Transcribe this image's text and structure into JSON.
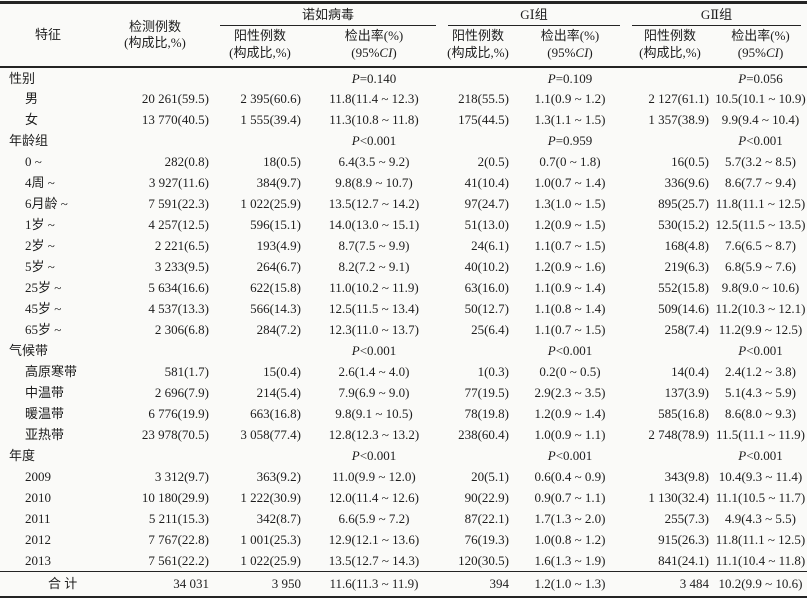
{
  "colors": {
    "background": "#fafaf8",
    "text": "#1d1d1d",
    "rule": "#242424"
  },
  "table": {
    "header": {
      "feature": "特征",
      "tested": [
        "检测例数",
        "(构成比,%)"
      ],
      "groups": [
        "诺如病毒",
        "GⅠ组",
        "GⅡ组"
      ],
      "positive": [
        "阳性例数",
        "(构成比,%)"
      ],
      "rate_line1": "检出率(%)",
      "rate_ci": {
        "pre": "(95%",
        "italic": "CI",
        "post": ")"
      }
    },
    "rows": [
      {
        "type": "category",
        "label": "性别",
        "cells": [
          "",
          "",
          "P=0.140",
          "",
          "P=0.109",
          "",
          "P=0.056"
        ]
      },
      {
        "type": "item",
        "label": "男",
        "cells": [
          "20 261(59.5)",
          "2 395(60.6)",
          "11.8(11.4 ~ 12.3)",
          "218(55.5)",
          "1.1(0.9 ~ 1.2)",
          "2 127(61.1)",
          "10.5(10.1 ~ 10.9)"
        ]
      },
      {
        "type": "item",
        "label": "女",
        "cells": [
          "13 770(40.5)",
          "1 555(39.4)",
          "11.3(10.8 ~ 11.8)",
          "175(44.5)",
          "1.3(1.1 ~ 1.5)",
          "1 357(38.9)",
          "9.9(9.4 ~ 10.4)"
        ]
      },
      {
        "type": "category",
        "label": "年龄组",
        "cells": [
          "",
          "",
          "P<0.001",
          "",
          "P=0.959",
          "",
          "P<0.001"
        ]
      },
      {
        "type": "item",
        "label": "0 ~",
        "cells": [
          "282(0.8)",
          "18(0.5)",
          "6.4(3.5 ~ 9.2)",
          "2(0.5)",
          "0.7(0 ~ 1.8)",
          "16(0.5)",
          "5.7(3.2 ~ 8.5)"
        ]
      },
      {
        "type": "item",
        "label": "4周 ~",
        "cells": [
          "3 927(11.6)",
          "384(9.7)",
          "9.8(8.9 ~ 10.7)",
          "41(10.4)",
          "1.0(0.7 ~ 1.4)",
          "336(9.6)",
          "8.6(7.7 ~ 9.4)"
        ]
      },
      {
        "type": "item",
        "label": "6月龄 ~",
        "cells": [
          "7 591(22.3)",
          "1 022(25.9)",
          "13.5(12.7 ~ 14.2)",
          "97(24.7)",
          "1.3(1.0 ~ 1.5)",
          "895(25.7)",
          "11.8(11.1 ~ 12.5)"
        ]
      },
      {
        "type": "item",
        "label": "1岁 ~",
        "cells": [
          "4 257(12.5)",
          "596(15.1)",
          "14.0(13.0 ~ 15.1)",
          "51(13.0)",
          "1.2(0.9 ~ 1.5)",
          "530(15.2)",
          "12.5(11.5 ~ 13.5)"
        ]
      },
      {
        "type": "item",
        "label": "2岁 ~",
        "cells": [
          "2 221(6.5)",
          "193(4.9)",
          "8.7(7.5 ~ 9.9)",
          "24(6.1)",
          "1.1(0.7 ~ 1.5)",
          "168(4.8)",
          "7.6(6.5 ~ 8.7)"
        ]
      },
      {
        "type": "item",
        "label": "5岁 ~",
        "cells": [
          "3 233(9.5)",
          "264(6.7)",
          "8.2(7.2 ~ 9.1)",
          "40(10.2)",
          "1.2(0.9 ~ 1.6)",
          "219(6.3)",
          "6.8(5.9 ~ 7.6)"
        ]
      },
      {
        "type": "item",
        "label": "25岁 ~",
        "cells": [
          "5 634(16.6)",
          "622(15.8)",
          "11.0(10.2 ~ 11.9)",
          "63(16.0)",
          "1.1(0.9 ~ 1.4)",
          "552(15.8)",
          "9.8(9.0 ~ 10.6)"
        ]
      },
      {
        "type": "item",
        "label": "45岁 ~",
        "cells": [
          "4 537(13.3)",
          "566(14.3)",
          "12.5(11.5 ~ 13.4)",
          "50(12.7)",
          "1.1(0.8 ~ 1.4)",
          "509(14.6)",
          "11.2(10.3 ~ 12.1)"
        ]
      },
      {
        "type": "item",
        "label": "65岁 ~",
        "cells": [
          "2 306(6.8)",
          "284(7.2)",
          "12.3(11.0 ~ 13.7)",
          "25(6.4)",
          "1.1(0.7 ~ 1.5)",
          "258(7.4)",
          "11.2(9.9 ~ 12.5)"
        ]
      },
      {
        "type": "category",
        "label": "气候带",
        "cells": [
          "",
          "",
          "P<0.001",
          "",
          "P<0.001",
          "",
          "P<0.001"
        ]
      },
      {
        "type": "item",
        "label": "高原寒带",
        "cells": [
          "581(1.7)",
          "15(0.4)",
          "2.6(1.4 ~ 4.0)",
          "1(0.3)",
          "0.2(0 ~ 0.5)",
          "14(0.4)",
          "2.4(1.2 ~ 3.8)"
        ]
      },
      {
        "type": "item",
        "label": "中温带",
        "cells": [
          "2 696(7.9)",
          "214(5.4)",
          "7.9(6.9 ~ 9.0)",
          "77(19.5)",
          "2.9(2.3 ~ 3.5)",
          "137(3.9)",
          "5.1(4.3 ~ 5.9)"
        ]
      },
      {
        "type": "item",
        "label": "暖温带",
        "cells": [
          "6 776(19.9)",
          "663(16.8)",
          "9.8(9.1 ~ 10.5)",
          "78(19.8)",
          "1.2(0.9 ~ 1.4)",
          "585(16.8)",
          "8.6(8.0 ~ 9.3)"
        ]
      },
      {
        "type": "item",
        "label": "亚热带",
        "cells": [
          "23 978(70.5)",
          "3 058(77.4)",
          "12.8(12.3 ~ 13.2)",
          "238(60.4)",
          "1.0(0.9 ~ 1.1)",
          "2 748(78.9)",
          "11.5(11.1 ~ 11.9)"
        ]
      },
      {
        "type": "category",
        "label": "年度",
        "cells": [
          "",
          "",
          "P<0.001",
          "",
          "P<0.001",
          "",
          "P<0.001"
        ]
      },
      {
        "type": "item",
        "label": "2009",
        "cells": [
          "3 312(9.7)",
          "363(9.2)",
          "11.0(9.9 ~ 12.0)",
          "20(5.1)",
          "0.6(0.4 ~ 0.9)",
          "343(9.8)",
          "10.4(9.3 ~ 11.4)"
        ]
      },
      {
        "type": "item",
        "label": "2010",
        "cells": [
          "10 180(29.9)",
          "1 222(30.9)",
          "12.0(11.4 ~ 12.6)",
          "90(22.9)",
          "0.9(0.7 ~ 1.1)",
          "1 130(32.4)",
          "11.1(10.5 ~ 11.7)"
        ]
      },
      {
        "type": "item",
        "label": "2011",
        "cells": [
          "5 211(15.3)",
          "342(8.7)",
          "6.6(5.9 ~ 7.2)",
          "87(22.1)",
          "1.7(1.3 ~ 2.0)",
          "255(7.3)",
          "4.9(4.3 ~ 5.5)"
        ]
      },
      {
        "type": "item",
        "label": "2012",
        "cells": [
          "7 767(22.8)",
          "1 001(25.3)",
          "12.9(12.1 ~ 13.6)",
          "76(19.3)",
          "1.0(0.8 ~ 1.2)",
          "915(26.3)",
          "11.8(11.1 ~ 12.5)"
        ]
      },
      {
        "type": "item",
        "label": "2013",
        "cells": [
          "7 561(22.2)",
          "1 022(25.9)",
          "13.5(12.7 ~ 14.3)",
          "120(30.5)",
          "1.6(1.3 ~ 1.9)",
          "841(24.1)",
          "11.1(10.4 ~ 11.8)"
        ]
      },
      {
        "type": "total",
        "label": "合 计",
        "cells": [
          "34 031",
          "3 950",
          "11.6(11.3 ~ 11.9)",
          "394",
          "1.2(1.0 ~ 1.3)",
          "3 484",
          "10.2(9.9 ~ 10.6)"
        ]
      }
    ]
  }
}
